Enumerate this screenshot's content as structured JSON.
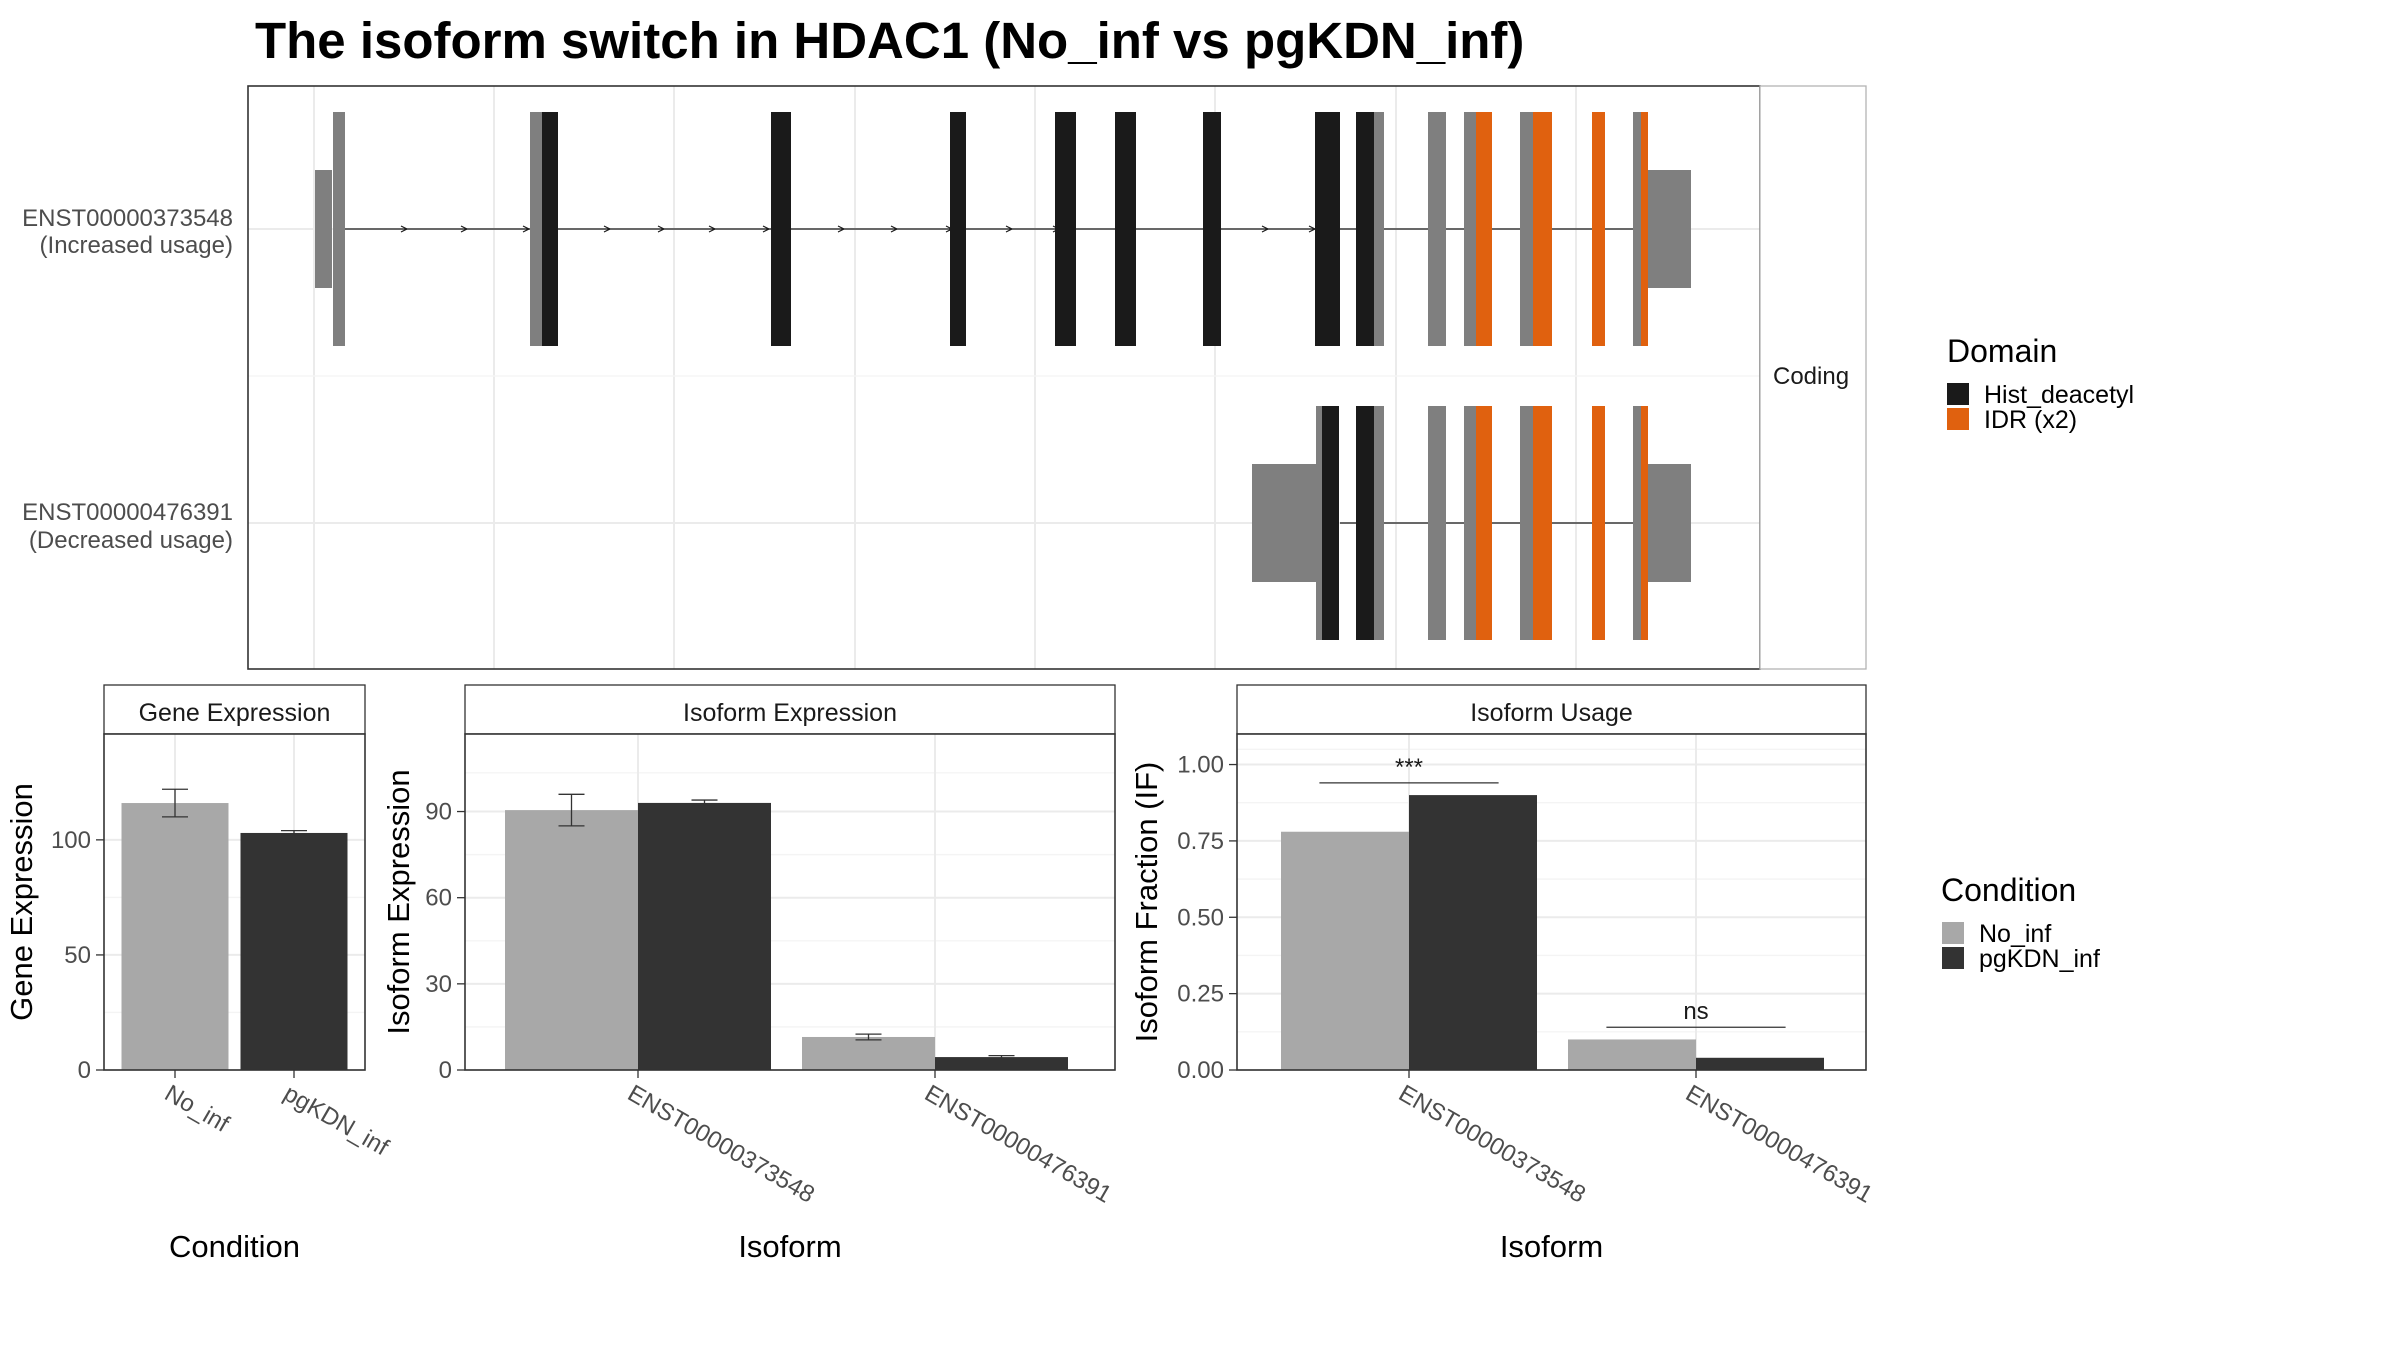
{
  "title": "The isoform switch in HDAC1 (No_inf vs pgKDN_inf)",
  "colors": {
    "hist_deacetyl": "#1a1a1a",
    "idr": "#e0610f",
    "utr": "#7f7f7f",
    "no_inf": "#a8a8a8",
    "pgkdn_inf": "#333333",
    "panel_border": "#333333",
    "strip_border": "#b3b3b3",
    "grid": "#ebebeb",
    "axis_text": "#4d4d4d"
  },
  "transcripts": [
    {
      "id": "ENST00000373548",
      "usage": "(Increased usage)"
    },
    {
      "id": "ENST00000476391",
      "usage": "(Decreased usage)"
    }
  ],
  "facet_label": "Coding",
  "legends": {
    "domain": {
      "title": "Domain",
      "items": [
        "Hist_deacetyl",
        "IDR (x2)"
      ]
    },
    "condition": {
      "title": "Condition",
      "items": [
        "No_inf",
        "pgKDN_inf"
      ]
    }
  },
  "chart_data": [
    {
      "type": "bar",
      "panel": "Gene Expression",
      "xlabel": "Condition",
      "ylabel": "Gene Expression",
      "categories": [
        "No_inf",
        "pgKDN_inf"
      ],
      "values": [
        116,
        103
      ],
      "error": [
        [
          110,
          122
        ],
        [
          102,
          104
        ]
      ],
      "ylim": [
        0,
        146
      ],
      "yticks": [
        0,
        50,
        100
      ],
      "grid": true
    },
    {
      "type": "bar",
      "panel": "Isoform Expression",
      "xlabel": "Isoform",
      "ylabel": "Isoform Expression",
      "categories": [
        "ENST00000373548",
        "ENST00000476391"
      ],
      "series": [
        {
          "name": "No_inf",
          "values": [
            90.5,
            11.5
          ],
          "error": [
            [
              85,
              96
            ],
            [
              10.5,
              12.5
            ]
          ]
        },
        {
          "name": "pgKDN_inf",
          "values": [
            93,
            4.5
          ],
          "error": [
            [
              92,
              94
            ],
            [
              4,
              5
            ]
          ]
        }
      ],
      "ylim": [
        0,
        117
      ],
      "yticks": [
        0,
        30,
        60,
        90
      ],
      "grid": true
    },
    {
      "type": "bar",
      "panel": "Isoform Usage",
      "xlabel": "Isoform",
      "ylabel": "Isoform Fraction (IF)",
      "categories": [
        "ENST00000373548",
        "ENST00000476391"
      ],
      "series": [
        {
          "name": "No_inf",
          "values": [
            0.78,
            0.1
          ]
        },
        {
          "name": "pgKDN_inf",
          "values": [
            0.9,
            0.04
          ]
        }
      ],
      "significance": [
        {
          "category": "ENST00000373548",
          "label": "***",
          "y": 0.94
        },
        {
          "category": "ENST00000476391",
          "label": "ns",
          "y": 0.14
        }
      ],
      "ylim": [
        0,
        1.1
      ],
      "yticks": [
        "0.00",
        "0.25",
        "0.50",
        "0.75",
        "1.00"
      ],
      "grid": true
    }
  ]
}
